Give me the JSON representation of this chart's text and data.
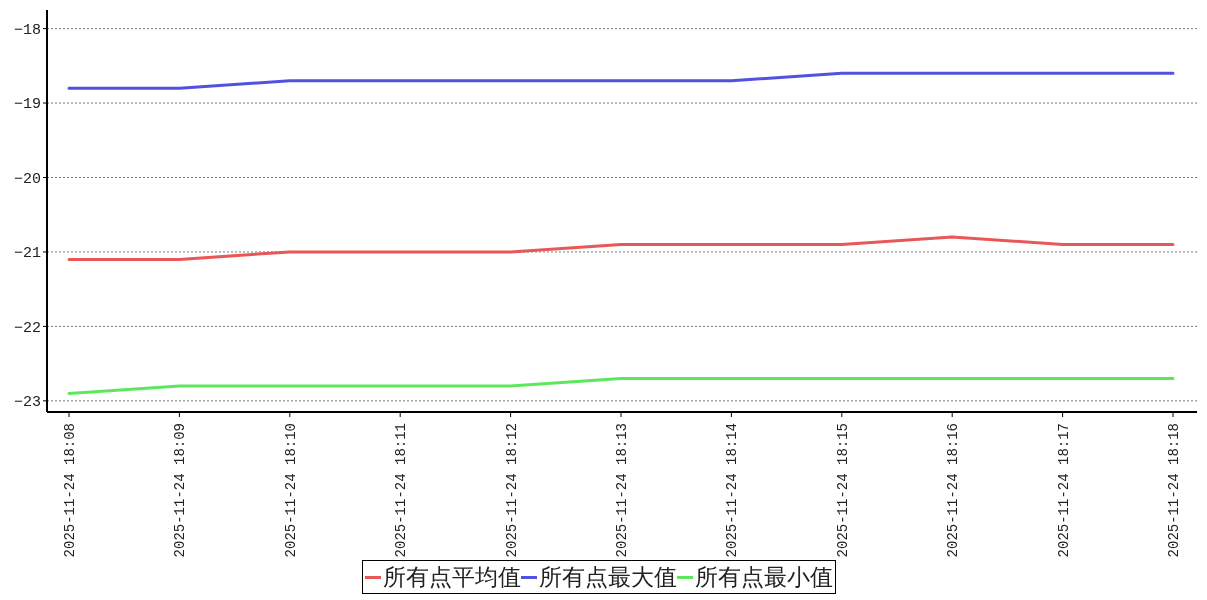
{
  "chart_data": {
    "type": "line",
    "categories": [
      "2025-11-24 18:08",
      "2025-11-24 18:09",
      "2025-11-24 18:10",
      "2025-11-24 18:11",
      "2025-11-24 18:12",
      "2025-11-24 18:13",
      "2025-11-24 18:14",
      "2025-11-24 18:15",
      "2025-11-24 18:16",
      "2025-11-24 18:17",
      "2025-11-24 18:18"
    ],
    "series": [
      {
        "name": "所有点平均值",
        "color": "#e85858",
        "values": [
          -21.1,
          -21.1,
          -21.0,
          -21.0,
          -21.0,
          -20.9,
          -20.9,
          -20.9,
          -20.8,
          -20.9,
          -20.9
        ]
      },
      {
        "name": "所有点最大值",
        "color": "#5252e0",
        "values": [
          -18.8,
          -18.8,
          -18.7,
          -18.7,
          -18.7,
          -18.7,
          -18.7,
          -18.6,
          -18.6,
          -18.6,
          -18.6
        ]
      },
      {
        "name": "所有点最小值",
        "color": "#5ce85c",
        "values": [
          -22.9,
          -22.8,
          -22.8,
          -22.8,
          -22.8,
          -22.7,
          -22.7,
          -22.7,
          -22.7,
          -22.7,
          -22.7
        ]
      }
    ],
    "ylim": [
      -23.15,
      -17.75
    ],
    "yticks": [
      -23,
      -22,
      -21,
      -20,
      -19,
      -18
    ],
    "grid": "y",
    "legend": "bottom",
    "marker": "none",
    "line_style": "solid"
  }
}
